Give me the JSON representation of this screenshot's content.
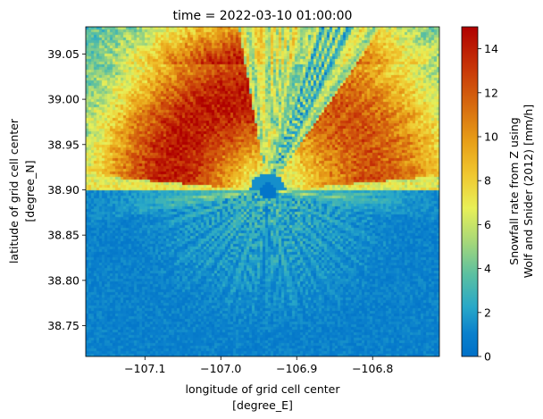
{
  "chart_data": {
    "type": "heatmap",
    "title": "time = 2022-03-10 01:00:00",
    "xlabel_lines": [
      "longitude of grid cell center",
      "[degree_E]"
    ],
    "ylabel_lines": [
      "latitude of grid cell center",
      "[degree_N]"
    ],
    "colorbar_label_lines": [
      "Snowfall rate from Z using",
      "Wolf and Snider (2012) [mm/h]"
    ],
    "xlim": [
      -107.178,
      -106.712
    ],
    "ylim": [
      38.716,
      39.08
    ],
    "x_ticks": [
      -107.1,
      -107.0,
      -106.9,
      -106.8
    ],
    "x_tick_labels": [
      "−107.1",
      "−107.0",
      "−106.9",
      "−106.8"
    ],
    "y_ticks": [
      38.75,
      38.8,
      38.85,
      38.9,
      38.95,
      39.0,
      39.05
    ],
    "y_tick_labels": [
      "38.75",
      "38.80",
      "38.85",
      "38.90",
      "38.95",
      "39.00",
      "39.05"
    ],
    "colorbar_range": [
      0,
      15
    ],
    "colorbar_ticks": [
      0,
      2,
      4,
      6,
      8,
      10,
      12,
      14
    ],
    "colorbar_tick_labels": [
      "0",
      "2",
      "4",
      "6",
      "8",
      "10",
      "12",
      "14"
    ],
    "colormap": "jet-like (blue-cyan-green-yellow-orange-red)",
    "radar_center": [
      -106.94,
      38.9
    ],
    "field_approx_mm_per_h": {
      "north_west_sector_peak": 12,
      "north_east_sector_peak": 10,
      "west_sector": 7,
      "south_sector": 1,
      "north_edge": 5
    }
  }
}
